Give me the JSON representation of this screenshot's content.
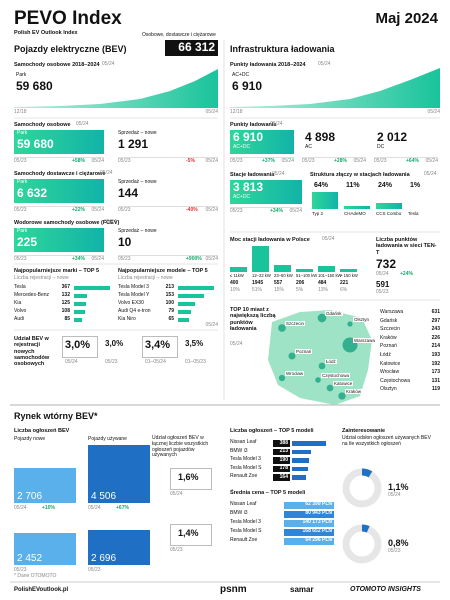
{
  "header": {
    "title": "PEVO Index",
    "subtitle": "Polish EV Outlook Index",
    "scope": "Osobowe, dostawcze i ciężarowe",
    "date": "Maj 2024"
  },
  "bev": {
    "title": "Pojazdy elektryczne (BEV)",
    "total": "66 312",
    "trend": {
      "title": "Samochody osobowe 2018–2024",
      "period": "05/24",
      "label": "Park",
      "value": "59 680",
      "start": "12/18",
      "end": "05/24"
    },
    "cards": [
      {
        "title": "Samochody osobowe",
        "period": "05/24",
        "park": {
          "label": "Park",
          "value": "59 680",
          "from": "05/23",
          "change": "+58%",
          "to": "05/24"
        },
        "sales": {
          "label": "Sprzedaż – nowe",
          "value": "1 291",
          "from": "05/23",
          "change": "-5%",
          "to": "05/24"
        }
      },
      {
        "title": "Samochody dostawcze i ciężarowe",
        "period": "05/24",
        "park": {
          "label": "Park",
          "value": "6 632",
          "from": "05/23",
          "change": "+22%",
          "to": "05/24"
        },
        "sales": {
          "label": "Sprzedaż – nowe",
          "value": "144",
          "from": "05/23",
          "change": "-40%",
          "to": "05/24"
        }
      },
      {
        "title": "Wodorowe samochody osobowe (FCEV)",
        "period": "05/24",
        "park": {
          "label": "Park",
          "value": "225",
          "from": "05/23",
          "change": "+34%",
          "to": "05/24"
        },
        "sales": {
          "label": "Sprzedaż – nowe",
          "value": "10",
          "from": "05/23",
          "change": "+900%",
          "to": "05/24"
        }
      }
    ],
    "brands": {
      "title": "Najpopularniejsze marki – TOP 5",
      "subtitle": "Liczba rejestracji – nowe",
      "names": [
        "Tesla",
        "Mercedes-Benz",
        "Kia",
        "Volvo",
        "Audi"
      ],
      "values": [
        367,
        132,
        125,
        108,
        85
      ]
    },
    "models": {
      "title": "Najpopularniejsze modele – TOP 5",
      "subtitle": "Liczba rejestracji – nowe",
      "names": [
        "Tesla Model 3",
        "Tesla Model Y",
        "Volvo EX30",
        "Audi Q4 e-tron",
        "Kia Niro"
      ],
      "values": [
        213,
        153,
        100,
        79,
        65
      ],
      "period": "05/24"
    },
    "share": {
      "title": "Udział BEV w rejestracji nowych samochodów osobowych",
      "items": [
        {
          "value": "3,0%",
          "period": "05/24"
        },
        {
          "value": "3,0%",
          "period": "05/23"
        },
        {
          "value": "3,4%",
          "period": "01–05/24"
        },
        {
          "value": "3,5%",
          "period": "01–05/23"
        }
      ]
    }
  },
  "infra": {
    "title": "Infrastruktura ładowania",
    "trend": {
      "title": "Punkty ładowania 2018–2024",
      "period": "05/24",
      "label": "AC+DC",
      "value": "6 910",
      "start": "12/18",
      "end": "05/24"
    },
    "points": {
      "title": "Punkty ładowania",
      "period": "05/24",
      "items": [
        {
          "value": "6 910",
          "label": "AC+DC",
          "from": "05/23",
          "change": "+37%",
          "to": "05/24"
        },
        {
          "value": "4 898",
          "label": "AC",
          "from": "05/23",
          "change": "+28%",
          "to": "05/24"
        },
        {
          "value": "2 012",
          "label": "DC",
          "from": "05/23",
          "change": "+64%",
          "to": "05/24"
        }
      ]
    },
    "stations": {
      "title": "Stacje ładowania",
      "period": "05/24",
      "value": "3 813",
      "label": "AC+DC",
      "from": "05/23",
      "change": "+34%",
      "to": "05/24"
    },
    "connectors": {
      "title": "Struktura złączy w stacjach ładowania",
      "period": "05/24",
      "names": [
        "Typ 2",
        "CHAdeMO",
        "CCS Combo",
        "Tesla"
      ],
      "shares": [
        {
          "value": 64,
          "label": "64%"
        },
        {
          "value": 11,
          "label": "11%"
        },
        {
          "value": 24,
          "label": "24%"
        },
        {
          "value": 1,
          "label": "1%"
        }
      ]
    },
    "power": {
      "title": "Moc stacji ładowania w Polsce",
      "period": "05/24",
      "ranges": [
        "≤ 11kW",
        "12–22 kW",
        "23–50 kW",
        "51–100 kW",
        "101–150 kW",
        "> 150 kW"
      ],
      "counts": [
        400,
        1945,
        557,
        206,
        484,
        221
      ],
      "shares": [
        "10%",
        "51%",
        "15%",
        "5%",
        "13%",
        "6%"
      ]
    },
    "tent": {
      "title": "Liczba punktów ładowania w sieci TEN-T",
      "value": "732",
      "period": "05/24",
      "change": "+24%",
      "previous": "591",
      "previous_period": "05/23"
    },
    "cities": {
      "title": "TOP 10 miast z największą liczbą punktów ładowania",
      "period": "05/24",
      "names": [
        "Warszawa",
        "Gdańsk",
        "Szczecin",
        "Kraków",
        "Poznań",
        "Łódź",
        "Katowice",
        "Wrocław",
        "Częstochowa",
        "Olsztyn"
      ],
      "values": [
        631,
        297,
        243,
        226,
        214,
        193,
        192,
        173,
        131,
        119
      ]
    }
  },
  "secondary": {
    "title": "Rynek wtórny BEV*",
    "listings": {
      "title": "Liczba ogłoszeń BEV",
      "groups": [
        {
          "name": "Pojazdy nowe",
          "current": {
            "value": 2706,
            "label": "2 706"
          },
          "current_period": "05/24",
          "change": "+10%",
          "previous": {
            "value": 2452,
            "label": "2 452"
          },
          "previous_period": "05/23"
        },
        {
          "name": "Pojazdy używane",
          "current": {
            "value": 4506,
            "label": "4 506"
          },
          "current_period": "05/24",
          "change": "+67%",
          "previous": {
            "value": 2696,
            "label": "2 696"
          },
          "previous_period": "05/23"
        }
      ]
    },
    "listing_share": {
      "title": "Udział ogłoszeń BEV w łącznej liczbie wszystkich ogłoszeń pojazdów używanych",
      "items": [
        {
          "value": 1.6,
          "label": "1,6%",
          "period": "05/24"
        },
        {
          "value": 1.4,
          "label": "1,4%",
          "period": "05/23"
        }
      ]
    },
    "top_models": {
      "title": "Liczba ogłoszeń – TOP 5 modeli",
      "names": [
        "Nissan Leaf",
        "BMW i3",
        "Tesla Model 3",
        "Tesla Model S",
        "Renault Zoe"
      ],
      "values": [
        388,
        213,
        190,
        178,
        164
      ]
    },
    "prices": {
      "title": "Średnia cena – TOP 5 modeli",
      "names": [
        "Nissan Leaf",
        "BMW i3",
        "Tesla Model 3",
        "Tesla Model S",
        "Renault Zoe"
      ],
      "values": [
        "62 399 PLN",
        "80 943 PLN",
        "140 173 PLN",
        "168 652 PLN",
        "64 296 PLN"
      ]
    },
    "interest": {
      "title": "Zainteresowanie",
      "subtitle": "Udział odsłon ogłoszeń używanych BEV na tle wszystkich ogłoszeń",
      "items": [
        {
          "value": 1.1,
          "label": "1,1%",
          "period": "05/24"
        },
        {
          "value": 0.8,
          "label": "0,8%",
          "period": "05/23"
        }
      ]
    },
    "source": "* Dane OTOMOTO"
  },
  "footer": {
    "url": "PolishEVoutlook.pl",
    "logos": [
      "psnm",
      "samar",
      "OTOMOTO INSIGHTS"
    ]
  }
}
